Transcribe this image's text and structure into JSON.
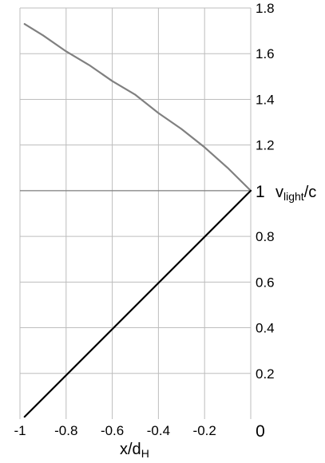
{
  "chart_data": {
    "type": "line",
    "title": "",
    "xlim": [
      -1,
      0
    ],
    "ylim": [
      0,
      1.8
    ],
    "x_ticks": [
      {
        "value": -1,
        "label": "-1"
      },
      {
        "value": -0.8,
        "label": "-0.8"
      },
      {
        "value": -0.6,
        "label": "-0.6"
      },
      {
        "value": -0.4,
        "label": "-0.4"
      },
      {
        "value": -0.2,
        "label": "-0.2"
      },
      {
        "value": 0,
        "label": "0"
      }
    ],
    "y_ticks": [
      {
        "value": 0.2,
        "label": "0.2"
      },
      {
        "value": 0.4,
        "label": "0.4"
      },
      {
        "value": 0.6,
        "label": "0.6"
      },
      {
        "value": 0.8,
        "label": "0.8"
      },
      {
        "value": 1,
        "label": "1"
      },
      {
        "value": 1.2,
        "label": "1.2"
      },
      {
        "value": 1.4,
        "label": "1.4"
      },
      {
        "value": 1.6,
        "label": "1.6"
      },
      {
        "value": 1.8,
        "label": "1.8"
      }
    ],
    "y_zero_label": "",
    "xlabel": {
      "main": "x/d",
      "sub": "H"
    },
    "ylabel": {
      "main": "v",
      "sub": "light",
      "tail": "/c"
    },
    "grid": true,
    "series": [
      {
        "color": "#808080",
        "x": [
          -0.98,
          -0.9,
          -0.8,
          -0.7,
          -0.6,
          -0.5,
          -0.4,
          -0.3,
          -0.2,
          -0.1,
          0
        ],
        "y": [
          1.73,
          1.68,
          1.61,
          1.55,
          1.48,
          1.42,
          1.34,
          1.27,
          1.19,
          1.1,
          1.0
        ]
      },
      {
        "color": "#000000",
        "x": [
          -0.98,
          0
        ],
        "y": [
          0.01,
          1.0
        ]
      }
    ],
    "reference_line": {
      "y": 1,
      "color": "#808080"
    }
  }
}
